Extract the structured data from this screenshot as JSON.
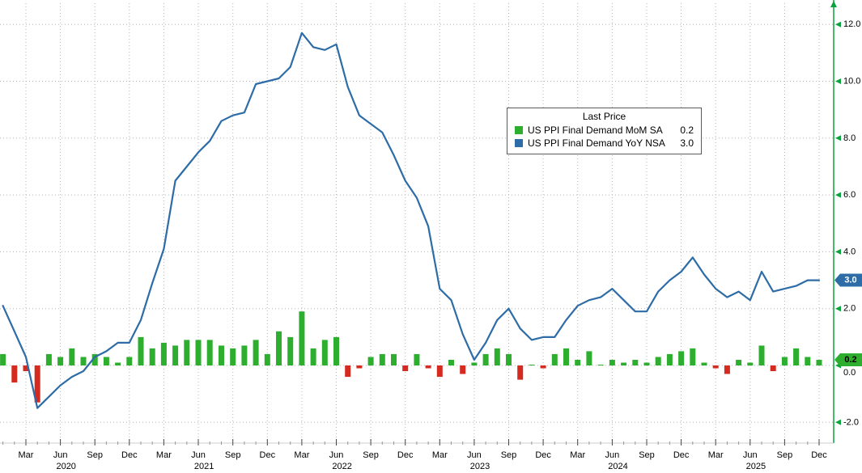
{
  "legend": {
    "title": "Last Price",
    "series": [
      {
        "label": "US PPI Final Demand MoM SA",
        "last_price": "0.2",
        "color": "#2eae2e"
      },
      {
        "label": "US PPI Final Demand YoY NSA",
        "last_price": "3.0",
        "color": "#2d6ca6"
      }
    ]
  },
  "axis": {
    "y_ticks": [
      "12.0",
      "10.0",
      "8.0",
      "6.0",
      "4.0",
      "2.0",
      "0.0",
      "-2.0"
    ],
    "y_tick_values": [
      12,
      10,
      8,
      6,
      4,
      2,
      0,
      -2
    ],
    "quarter_labels": [
      "Mar",
      "Jun",
      "Sep",
      "Dec"
    ],
    "years": [
      "2020",
      "2021",
      "2022",
      "2023",
      "2024",
      "2025"
    ],
    "axis_color": "#0aa23c",
    "grid_color": "#b5b5b5"
  },
  "badges": [
    {
      "value": "3.0",
      "at": 3.0,
      "color": "#2d6ca6",
      "text_color": "#ffffff"
    },
    {
      "value": "0.2",
      "at": 0.2,
      "color": "#2eae2e",
      "text_color": "#000000"
    }
  ],
  "chart_data": {
    "type": "mixed",
    "x_frequency": "monthly",
    "x_start": "2020-01",
    "x_end": "2025-12",
    "y_axis_side": "right",
    "ylim": [
      -2.7,
      12.8
    ],
    "grid": "dotted",
    "legend_position": "top-center-right",
    "series": [
      {
        "name": "US PPI Final Demand MoM SA",
        "type": "bar",
        "color_positive": "#2eae2e",
        "color_negative": "#d42a20",
        "last": 0.2,
        "values": [
          0.4,
          -0.6,
          -0.2,
          -1.3,
          0.4,
          0.3,
          0.6,
          0.3,
          0.4,
          0.3,
          0.1,
          0.3,
          1.0,
          0.6,
          0.8,
          0.7,
          0.9,
          0.9,
          0.9,
          0.7,
          0.6,
          0.7,
          0.9,
          0.4,
          1.2,
          1.0,
          1.9,
          0.6,
          0.9,
          1.0,
          -0.4,
          -0.1,
          0.3,
          0.4,
          0.4,
          -0.2,
          0.4,
          -0.1,
          -0.4,
          0.2,
          -0.3,
          0.1,
          0.4,
          0.6,
          0.4,
          -0.5,
          0.0,
          -0.1,
          0.4,
          0.6,
          0.2,
          0.5,
          0.0,
          0.2,
          0.1,
          0.2,
          0.1,
          0.3,
          0.4,
          0.5,
          0.6,
          0.1,
          -0.1,
          -0.3,
          0.2,
          0.1,
          0.7,
          -0.2,
          0.3,
          0.6,
          0.3,
          0.2
        ]
      },
      {
        "name": "US PPI Final Demand YoY NSA",
        "type": "line",
        "color": "#2d6ca6",
        "last": 3.0,
        "values": [
          2.1,
          1.2,
          0.3,
          -1.5,
          -1.1,
          -0.7,
          -0.4,
          -0.2,
          0.3,
          0.5,
          0.8,
          0.8,
          1.6,
          2.9,
          4.1,
          6.5,
          7.0,
          7.5,
          7.9,
          8.6,
          8.8,
          8.9,
          9.9,
          10.0,
          10.1,
          10.5,
          11.7,
          11.2,
          11.1,
          11.3,
          9.8,
          8.8,
          8.5,
          8.2,
          7.4,
          6.5,
          5.9,
          4.9,
          2.7,
          2.3,
          1.1,
          0.2,
          0.8,
          1.6,
          2.0,
          1.3,
          0.9,
          1.0,
          1.0,
          1.6,
          2.1,
          2.3,
          2.4,
          2.7,
          2.3,
          1.9,
          1.9,
          2.6,
          3.0,
          3.3,
          3.8,
          3.2,
          2.7,
          2.4,
          2.6,
          2.3,
          3.3,
          2.6,
          2.7,
          2.8,
          3.0,
          3.0
        ]
      }
    ]
  }
}
